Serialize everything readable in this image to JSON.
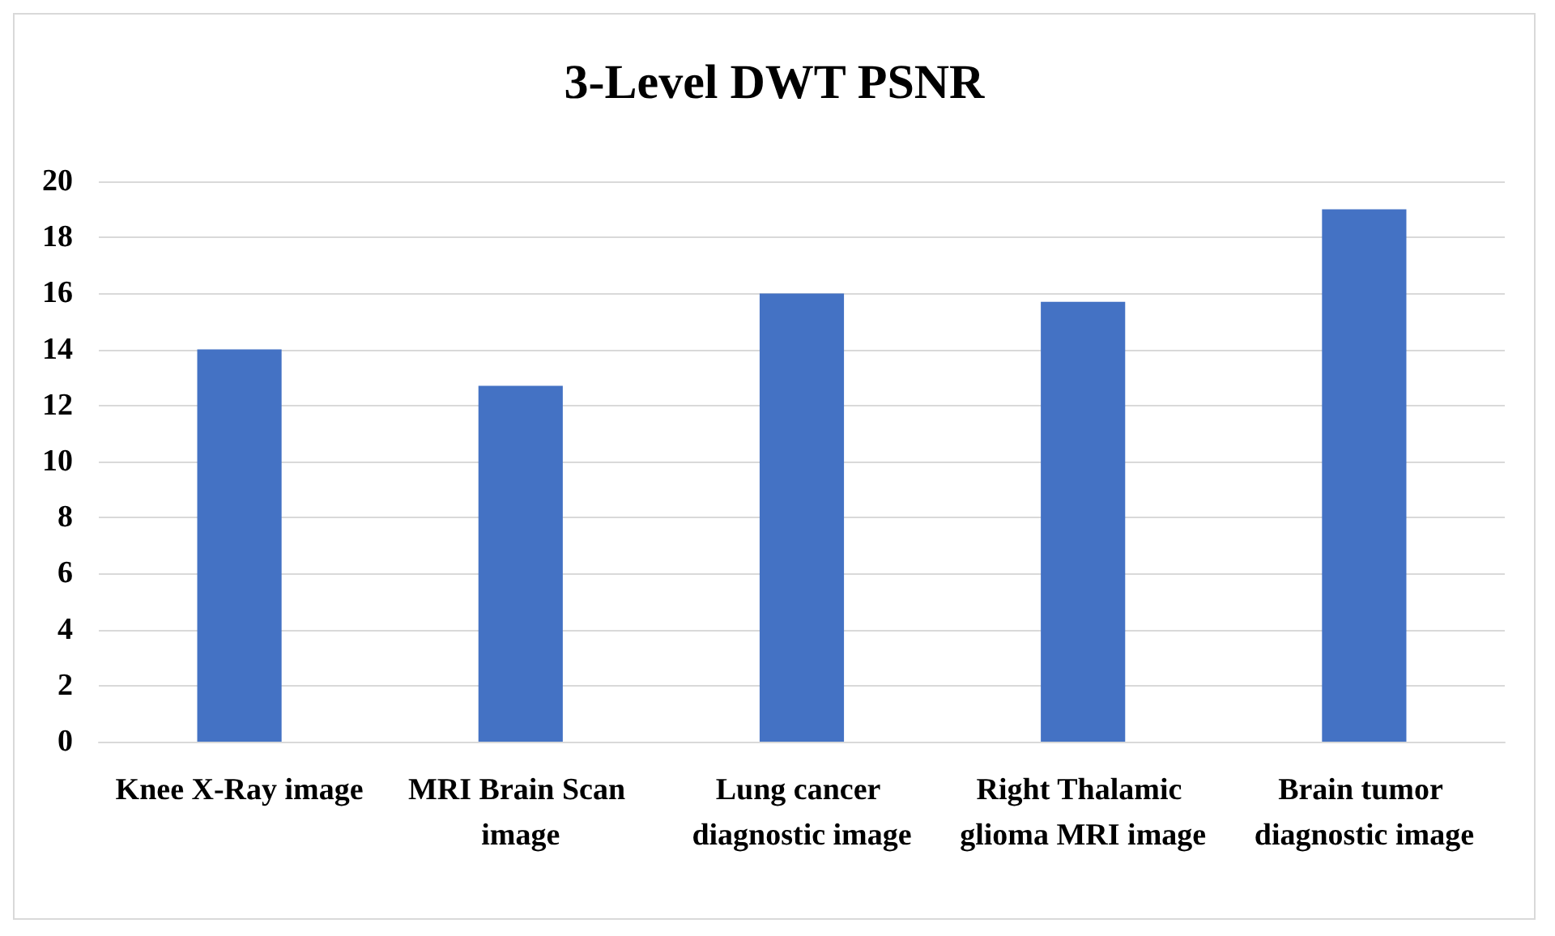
{
  "chart_data": {
    "type": "bar",
    "title": "3-Level DWT PSNR",
    "categories": [
      "Knee X-Ray image",
      "MRI Brain Scan image",
      "Lung cancer diagnostic image",
      "Right Thalamic glioma MRI image",
      "Brain tumor diagnostic image"
    ],
    "values": [
      14,
      12.7,
      16,
      15.7,
      19
    ],
    "color": "#4472c4",
    "ylim": [
      0,
      20
    ],
    "yticks": [
      0,
      2,
      4,
      6,
      8,
      10,
      12,
      14,
      16,
      18,
      20
    ],
    "grid": "y"
  }
}
